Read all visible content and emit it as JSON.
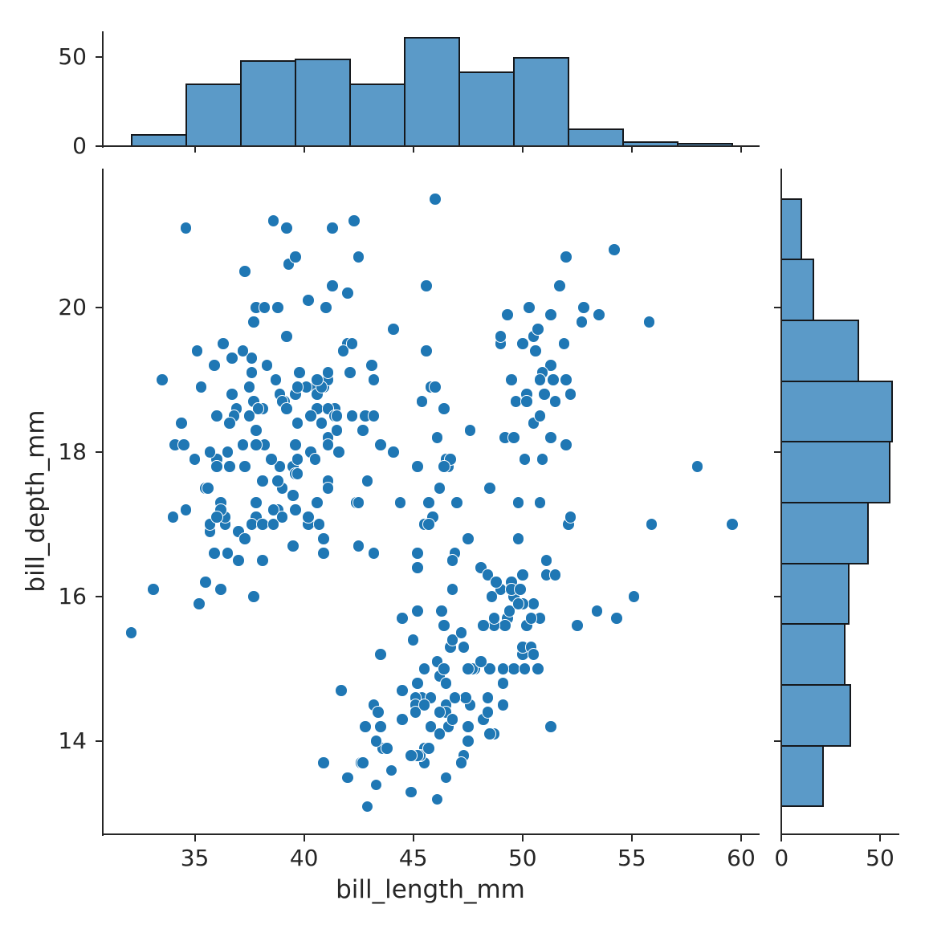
{
  "chart_data": {
    "type": "scatter",
    "subtype": "jointplot-with-marginal-histograms",
    "title": "",
    "xlabel": "bill_length_mm",
    "ylabel": "bill_depth_mm",
    "xlim": [
      30.79,
      60.81
    ],
    "ylim": [
      12.72,
      21.92
    ],
    "xticks": [
      35,
      40,
      45,
      50,
      55,
      60
    ],
    "yticks": [
      14,
      16,
      18,
      20
    ],
    "grid": false,
    "legend": false,
    "colors": {
      "dot": "#1f77b4",
      "hist_fill": "#5b9ac8",
      "hist_edge": "#15181c",
      "axis": "#262626",
      "text": "#262626",
      "background": "#ffffff"
    },
    "top_histogram": {
      "variable": "bill_length_mm",
      "bin_start": 32.1,
      "bin_width": 2.5,
      "counts": [
        7,
        35,
        48,
        49,
        35,
        61,
        42,
        50,
        10,
        3,
        2
      ],
      "axis_ticks": [
        0,
        50
      ],
      "axis_max": 64.2
    },
    "right_histogram": {
      "variable": "bill_depth_mm",
      "bin_start": 13.1,
      "bin_width": 0.84,
      "counts": [
        21,
        35,
        32,
        34,
        44,
        55,
        56,
        39,
        16,
        10
      ],
      "axis_ticks": [
        0,
        50
      ],
      "axis_max": 58.7
    },
    "points": [
      [
        39.1,
        18.7
      ],
      [
        39.5,
        17.4
      ],
      [
        40.3,
        18.0
      ],
      [
        36.7,
        19.3
      ],
      [
        39.3,
        20.6
      ],
      [
        38.9,
        17.8
      ],
      [
        39.2,
        19.6
      ],
      [
        34.1,
        18.1
      ],
      [
        42.0,
        20.2
      ],
      [
        37.8,
        17.1
      ],
      [
        37.8,
        17.3
      ],
      [
        41.1,
        17.6
      ],
      [
        38.6,
        21.2
      ],
      [
        34.6,
        21.1
      ],
      [
        36.6,
        17.8
      ],
      [
        38.7,
        19.0
      ],
      [
        42.5,
        20.7
      ],
      [
        34.4,
        18.4
      ],
      [
        46.0,
        21.5
      ],
      [
        37.8,
        18.3
      ],
      [
        37.7,
        18.7
      ],
      [
        35.9,
        19.2
      ],
      [
        38.2,
        18.1
      ],
      [
        38.8,
        17.2
      ],
      [
        35.3,
        18.9
      ],
      [
        40.6,
        18.6
      ],
      [
        40.5,
        17.9
      ],
      [
        37.9,
        18.6
      ],
      [
        40.5,
        18.9
      ],
      [
        39.5,
        16.7
      ],
      [
        37.2,
        18.1
      ],
      [
        39.5,
        17.8
      ],
      [
        40.9,
        18.9
      ],
      [
        36.4,
        17.0
      ],
      [
        39.2,
        21.1
      ],
      [
        38.8,
        20.0
      ],
      [
        42.2,
        18.5
      ],
      [
        37.6,
        19.3
      ],
      [
        39.8,
        19.1
      ],
      [
        36.5,
        18.0
      ],
      [
        40.8,
        18.4
      ],
      [
        36.0,
        18.5
      ],
      [
        44.1,
        19.7
      ],
      [
        37.0,
        16.9
      ],
      [
        39.6,
        18.8
      ],
      [
        41.1,
        19.0
      ],
      [
        37.5,
        18.9
      ],
      [
        36.0,
        17.9
      ],
      [
        42.3,
        21.2
      ],
      [
        39.6,
        17.7
      ],
      [
        40.1,
        18.9
      ],
      [
        35.0,
        17.9
      ],
      [
        42.0,
        19.5
      ],
      [
        34.5,
        18.1
      ],
      [
        41.4,
        18.6
      ],
      [
        39.0,
        17.5
      ],
      [
        40.6,
        18.8
      ],
      [
        36.5,
        16.6
      ],
      [
        37.6,
        19.1
      ],
      [
        35.7,
        16.9
      ],
      [
        41.3,
        21.1
      ],
      [
        37.6,
        17.0
      ],
      [
        41.1,
        18.2
      ],
      [
        36.4,
        17.1
      ],
      [
        41.6,
        18.0
      ],
      [
        35.5,
        16.2
      ],
      [
        41.1,
        19.1
      ],
      [
        35.9,
        16.6
      ],
      [
        41.8,
        19.4
      ],
      [
        33.5,
        19.0
      ],
      [
        39.7,
        18.4
      ],
      [
        39.6,
        17.2
      ],
      [
        45.8,
        18.9
      ],
      [
        35.5,
        17.5
      ],
      [
        42.8,
        18.5
      ],
      [
        40.9,
        16.8
      ],
      [
        37.2,
        19.4
      ],
      [
        36.2,
        16.1
      ],
      [
        42.1,
        19.1
      ],
      [
        34.6,
        17.2
      ],
      [
        42.9,
        17.6
      ],
      [
        36.7,
        18.8
      ],
      [
        35.1,
        19.4
      ],
      [
        37.3,
        17.8
      ],
      [
        41.3,
        20.3
      ],
      [
        36.3,
        19.5
      ],
      [
        36.9,
        18.6
      ],
      [
        38.3,
        19.2
      ],
      [
        38.9,
        18.8
      ],
      [
        35.7,
        18.0
      ],
      [
        41.1,
        18.1
      ],
      [
        34.0,
        17.1
      ],
      [
        39.6,
        18.1
      ],
      [
        36.2,
        17.3
      ],
      [
        40.8,
        18.9
      ],
      [
        38.1,
        18.6
      ],
      [
        40.3,
        18.5
      ],
      [
        33.1,
        16.1
      ],
      [
        43.2,
        18.5
      ],
      [
        35.0,
        17.9
      ],
      [
        41.0,
        20.0
      ],
      [
        37.7,
        16.0
      ],
      [
        37.8,
        20.0
      ],
      [
        37.9,
        18.6
      ],
      [
        39.7,
        18.9
      ],
      [
        38.6,
        17.2
      ],
      [
        38.2,
        20.0
      ],
      [
        38.1,
        17.0
      ],
      [
        43.2,
        19.0
      ],
      [
        38.1,
        16.5
      ],
      [
        45.6,
        20.3
      ],
      [
        39.7,
        17.7
      ],
      [
        42.2,
        19.5
      ],
      [
        39.6,
        20.7
      ],
      [
        42.7,
        18.3
      ],
      [
        38.6,
        17.0
      ],
      [
        37.3,
        20.5
      ],
      [
        35.7,
        17.0
      ],
      [
        41.1,
        18.6
      ],
      [
        36.2,
        17.2
      ],
      [
        37.7,
        19.8
      ],
      [
        40.2,
        17.0
      ],
      [
        41.4,
        18.5
      ],
      [
        35.2,
        15.9
      ],
      [
        40.6,
        19.0
      ],
      [
        38.8,
        17.6
      ],
      [
        41.5,
        18.3
      ],
      [
        39.0,
        17.1
      ],
      [
        44.1,
        18.0
      ],
      [
        38.5,
        17.9
      ],
      [
        43.1,
        19.2
      ],
      [
        36.8,
        18.5
      ],
      [
        37.5,
        18.5
      ],
      [
        38.1,
        17.6
      ],
      [
        41.1,
        17.5
      ],
      [
        35.6,
        17.5
      ],
      [
        40.2,
        20.1
      ],
      [
        37.0,
        16.5
      ],
      [
        39.7,
        17.9
      ],
      [
        40.2,
        17.1
      ],
      [
        40.6,
        17.3
      ],
      [
        32.1,
        15.5
      ],
      [
        40.7,
        17.0
      ],
      [
        37.3,
        16.8
      ],
      [
        39.0,
        18.7
      ],
      [
        39.2,
        18.6
      ],
      [
        36.6,
        18.4
      ],
      [
        36.0,
        17.8
      ],
      [
        37.8,
        18.1
      ],
      [
        36.0,
        17.1
      ],
      [
        41.5,
        18.5
      ],
      [
        46.5,
        17.9
      ],
      [
        50.0,
        19.5
      ],
      [
        51.3,
        19.2
      ],
      [
        45.4,
        18.7
      ],
      [
        52.7,
        19.8
      ],
      [
        45.2,
        17.8
      ],
      [
        46.1,
        18.2
      ],
      [
        51.3,
        18.2
      ],
      [
        46.0,
        18.9
      ],
      [
        51.3,
        19.9
      ],
      [
        46.6,
        17.8
      ],
      [
        51.7,
        20.3
      ],
      [
        47.0,
        17.3
      ],
      [
        52.0,
        18.1
      ],
      [
        45.9,
        17.1
      ],
      [
        50.5,
        19.6
      ],
      [
        50.3,
        20.0
      ],
      [
        58.0,
        17.8
      ],
      [
        46.4,
        18.6
      ],
      [
        49.2,
        18.2
      ],
      [
        42.4,
        17.3
      ],
      [
        48.5,
        17.5
      ],
      [
        43.2,
        16.6
      ],
      [
        50.6,
        19.4
      ],
      [
        46.7,
        17.9
      ],
      [
        52.0,
        19.0
      ],
      [
        50.5,
        18.4
      ],
      [
        49.5,
        19.0
      ],
      [
        46.4,
        17.8
      ],
      [
        52.8,
        20.0
      ],
      [
        40.9,
        16.6
      ],
      [
        54.2,
        20.8
      ],
      [
        42.5,
        16.7
      ],
      [
        51.0,
        18.8
      ],
      [
        49.7,
        18.7
      ],
      [
        47.5,
        16.8
      ],
      [
        47.6,
        18.3
      ],
      [
        52.0,
        20.7
      ],
      [
        46.9,
        16.6
      ],
      [
        53.5,
        19.9
      ],
      [
        49.0,
        19.5
      ],
      [
        46.2,
        17.5
      ],
      [
        50.9,
        19.1
      ],
      [
        45.5,
        17.0
      ],
      [
        50.9,
        17.9
      ],
      [
        50.8,
        18.5
      ],
      [
        50.1,
        17.9
      ],
      [
        49.0,
        19.6
      ],
      [
        51.5,
        18.7
      ],
      [
        49.8,
        17.3
      ],
      [
        48.1,
        16.4
      ],
      [
        51.4,
        19.0
      ],
      [
        45.7,
        17.3
      ],
      [
        50.7,
        19.7
      ],
      [
        42.5,
        17.3
      ],
      [
        52.2,
        18.8
      ],
      [
        45.2,
        16.6
      ],
      [
        49.3,
        19.9
      ],
      [
        50.2,
        18.8
      ],
      [
        45.6,
        19.4
      ],
      [
        51.9,
        19.5
      ],
      [
        46.8,
        16.5
      ],
      [
        45.7,
        17.0
      ],
      [
        55.8,
        19.8
      ],
      [
        43.5,
        18.1
      ],
      [
        49.6,
        18.2
      ],
      [
        50.8,
        19.0
      ],
      [
        50.2,
        18.7
      ],
      [
        46.1,
        13.2
      ],
      [
        50.0,
        16.3
      ],
      [
        48.7,
        14.1
      ],
      [
        50.0,
        15.2
      ],
      [
        47.6,
        14.5
      ],
      [
        46.5,
        13.5
      ],
      [
        45.4,
        14.6
      ],
      [
        46.7,
        15.3
      ],
      [
        43.3,
        13.4
      ],
      [
        46.8,
        15.4
      ],
      [
        40.9,
        13.7
      ],
      [
        49.0,
        16.1
      ],
      [
        45.5,
        13.7
      ],
      [
        48.4,
        14.6
      ],
      [
        45.8,
        14.6
      ],
      [
        49.3,
        15.7
      ],
      [
        42.0,
        13.5
      ],
      [
        49.2,
        15.6
      ],
      [
        46.2,
        14.4
      ],
      [
        48.7,
        15.6
      ],
      [
        50.2,
        15.6
      ],
      [
        45.1,
        14.6
      ],
      [
        46.5,
        14.5
      ],
      [
        46.3,
        15.8
      ],
      [
        42.9,
        13.1
      ],
      [
        46.1,
        15.1
      ],
      [
        44.5,
        14.3
      ],
      [
        47.8,
        15.0
      ],
      [
        48.2,
        14.3
      ],
      [
        50.0,
        15.3
      ],
      [
        47.3,
        15.3
      ],
      [
        42.8,
        14.2
      ],
      [
        45.1,
        14.5
      ],
      [
        59.6,
        17.0
      ],
      [
        49.1,
        14.8
      ],
      [
        48.4,
        16.3
      ],
      [
        42.6,
        13.7
      ],
      [
        44.4,
        17.3
      ],
      [
        44.0,
        13.6
      ],
      [
        48.7,
        15.7
      ],
      [
        42.7,
        13.7
      ],
      [
        49.6,
        16.0
      ],
      [
        45.3,
        13.8
      ],
      [
        49.6,
        15.0
      ],
      [
        50.5,
        15.9
      ],
      [
        43.6,
        13.9
      ],
      [
        45.5,
        13.9
      ],
      [
        50.5,
        15.9
      ],
      [
        44.9,
        13.3
      ],
      [
        45.2,
        15.8
      ],
      [
        46.6,
        14.2
      ],
      [
        48.5,
        14.1
      ],
      [
        45.1,
        14.4
      ],
      [
        50.1,
        15.0
      ],
      [
        46.5,
        14.4
      ],
      [
        45.0,
        15.4
      ],
      [
        43.8,
        13.9
      ],
      [
        45.5,
        15.0
      ],
      [
        43.2,
        14.5
      ],
      [
        50.4,
        15.3
      ],
      [
        45.3,
        13.8
      ],
      [
        46.2,
        14.9
      ],
      [
        45.7,
        13.9
      ],
      [
        54.3,
        15.7
      ],
      [
        45.8,
        14.2
      ],
      [
        49.8,
        16.8
      ],
      [
        46.2,
        14.4
      ],
      [
        49.5,
        16.2
      ],
      [
        43.5,
        14.2
      ],
      [
        50.7,
        15.0
      ],
      [
        47.7,
        15.0
      ],
      [
        46.4,
        15.6
      ],
      [
        48.2,
        15.6
      ],
      [
        46.5,
        14.8
      ],
      [
        46.4,
        15.0
      ],
      [
        48.6,
        16.0
      ],
      [
        47.5,
        14.2
      ],
      [
        51.1,
        16.3
      ],
      [
        45.2,
        13.8
      ],
      [
        45.2,
        16.4
      ],
      [
        49.1,
        14.5
      ],
      [
        52.5,
        15.6
      ],
      [
        47.4,
        14.6
      ],
      [
        50.0,
        15.9
      ],
      [
        44.9,
        13.8
      ],
      [
        50.8,
        17.3
      ],
      [
        43.4,
        14.4
      ],
      [
        51.3,
        14.2
      ],
      [
        47.5,
        14.0
      ],
      [
        52.1,
        17.0
      ],
      [
        47.5,
        15.0
      ],
      [
        52.2,
        17.1
      ],
      [
        45.5,
        14.5
      ],
      [
        49.5,
        16.1
      ],
      [
        44.5,
        14.7
      ],
      [
        50.8,
        15.7
      ],
      [
        49.4,
        15.8
      ],
      [
        46.9,
        14.6
      ],
      [
        48.4,
        14.4
      ],
      [
        51.1,
        16.5
      ],
      [
        48.5,
        15.0
      ],
      [
        55.9,
        17.0
      ],
      [
        47.2,
        15.5
      ],
      [
        49.1,
        15.0
      ],
      [
        47.3,
        13.8
      ],
      [
        46.8,
        16.1
      ],
      [
        41.7,
        14.7
      ],
      [
        53.4,
        15.8
      ],
      [
        43.3,
        14.0
      ],
      [
        48.1,
        15.1
      ],
      [
        50.5,
        15.2
      ],
      [
        49.8,
        15.9
      ],
      [
        43.5,
        15.2
      ],
      [
        51.5,
        16.3
      ],
      [
        46.2,
        14.1
      ],
      [
        55.1,
        16.0
      ],
      [
        44.5,
        15.7
      ],
      [
        48.8,
        16.2
      ],
      [
        47.2,
        13.7
      ],
      [
        46.8,
        14.3
      ],
      [
        50.4,
        15.7
      ],
      [
        45.2,
        14.8
      ],
      [
        49.9,
        16.1
      ]
    ]
  }
}
